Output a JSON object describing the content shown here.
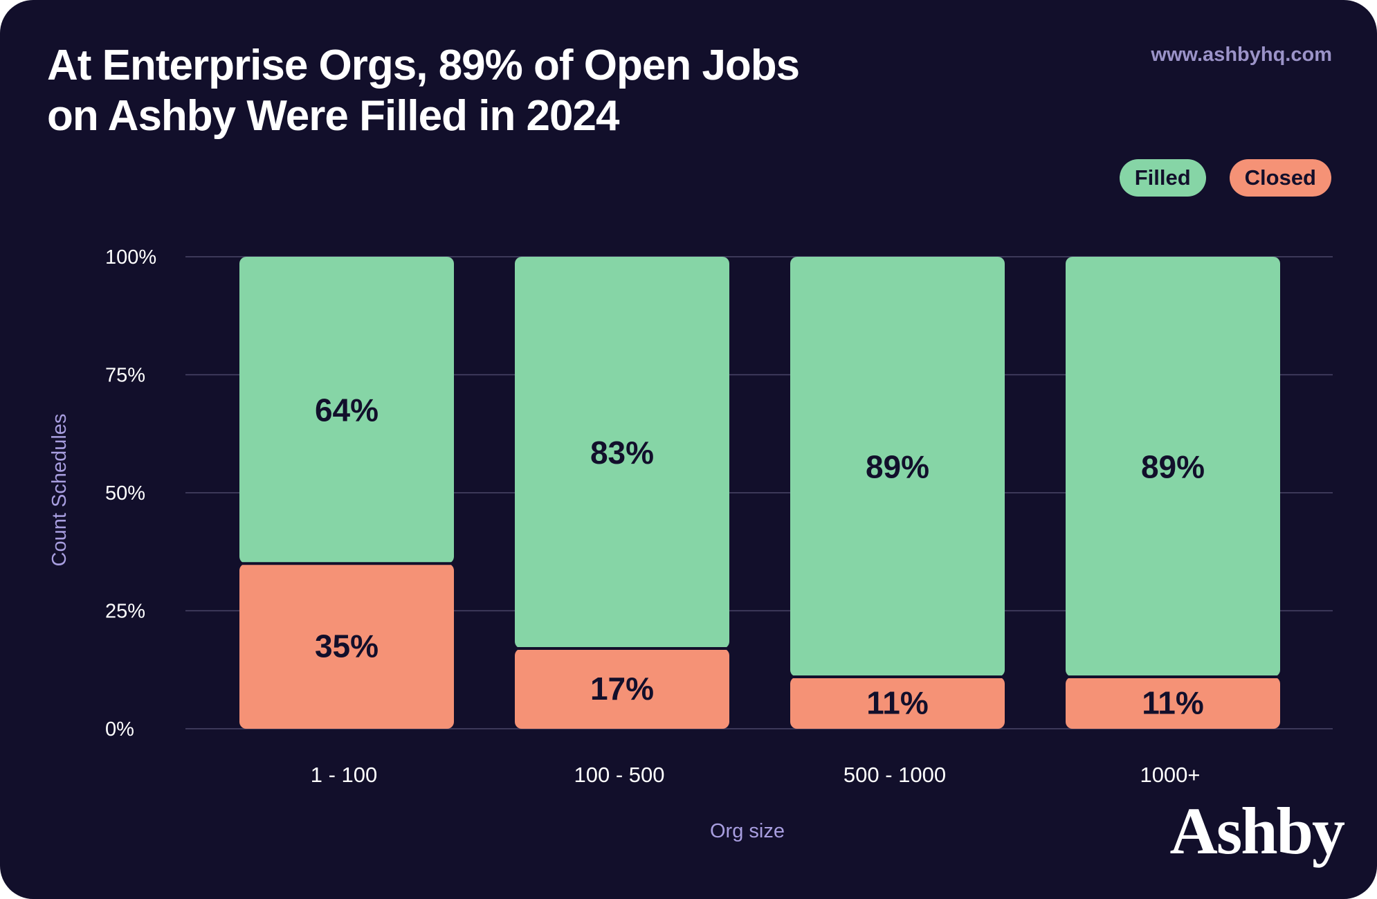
{
  "title_lines": [
    "At Enterprise Orgs, 89% of Open Jobs",
    "on Ashby Were Filled in 2024"
  ],
  "url": "www.ashbyhq.com",
  "logo_text": "Ashby",
  "colors": {
    "background": "#120f2b",
    "filled": "#86d5a6",
    "closed": "#f59276",
    "gridline": "#4a4669",
    "axis_label": "#a89ee0"
  },
  "chart_data": {
    "type": "bar",
    "stacked": true,
    "categories": [
      "1 - 100",
      "100 - 500",
      "500 - 1000",
      "1000+"
    ],
    "series": [
      {
        "name": "Closed",
        "values": [
          35,
          17,
          11,
          11
        ],
        "labels": [
          "35%",
          "17%",
          "11%",
          "11%"
        ],
        "color": "#f59276"
      },
      {
        "name": "Filled",
        "values": [
          64,
          83,
          89,
          89
        ],
        "labels": [
          "64%",
          "83%",
          "89%",
          "89%"
        ],
        "color": "#86d5a6"
      }
    ],
    "legend": [
      "Filled",
      "Closed"
    ],
    "legend_position": "top-right",
    "xlabel": "Org size",
    "ylabel": "Count Schedules",
    "yticks": [
      0,
      25,
      50,
      75,
      100
    ],
    "ytick_labels": [
      "0%",
      "25%",
      "50%",
      "75%",
      "100%"
    ],
    "ylim": [
      0,
      100
    ],
    "grid": true
  }
}
